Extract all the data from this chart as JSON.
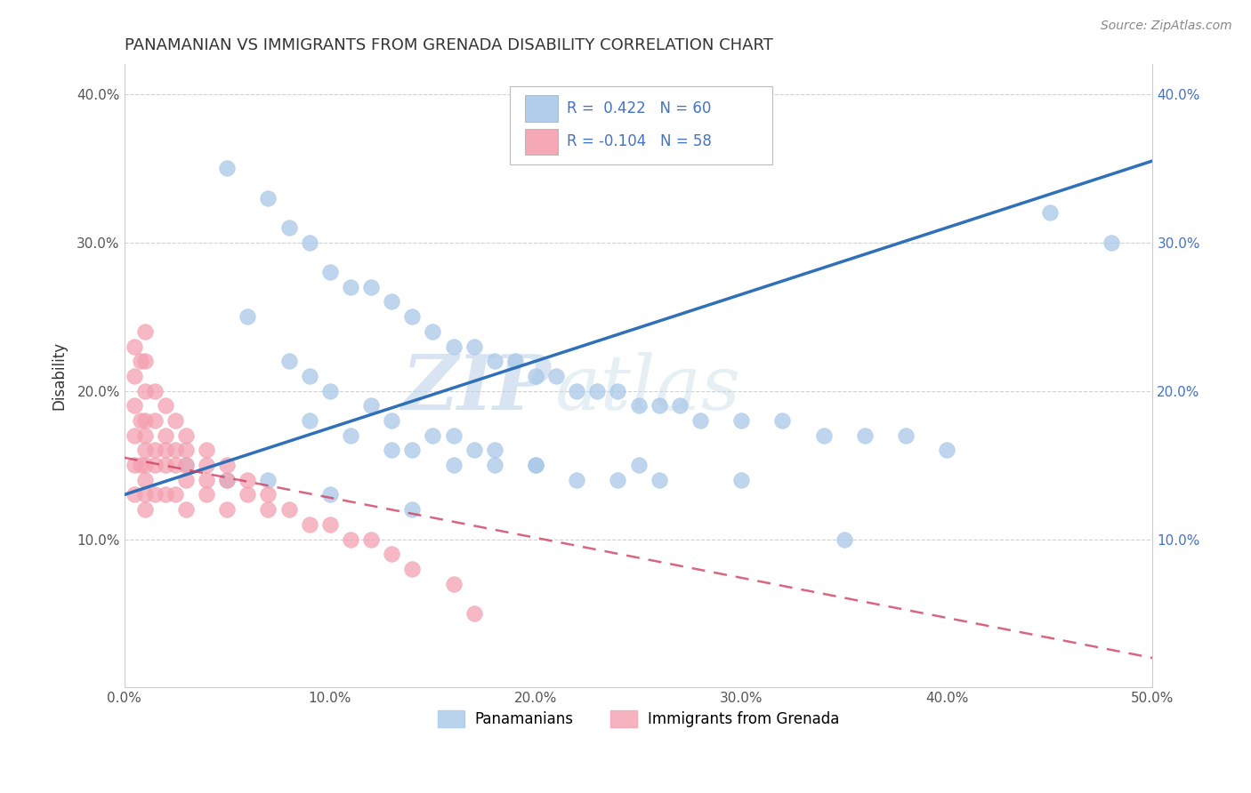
{
  "title": "PANAMANIAN VS IMMIGRANTS FROM GRENADA DISABILITY CORRELATION CHART",
  "source": "Source: ZipAtlas.com",
  "xlabel_label": "Panamanians",
  "ylabel_label": "Disability",
  "xlabel2_label": "Immigrants from Grenada",
  "xlim": [
    0.0,
    0.5
  ],
  "ylim": [
    0.0,
    0.42
  ],
  "xticks": [
    0.0,
    0.1,
    0.2,
    0.3,
    0.4,
    0.5
  ],
  "yticks": [
    0.1,
    0.2,
    0.3,
    0.4
  ],
  "xtick_labels": [
    "0.0%",
    "10.0%",
    "20.0%",
    "30.0%",
    "40.0%",
    "50.0%"
  ],
  "ytick_labels": [
    "10.0%",
    "20.0%",
    "30.0%",
    "40.0%"
  ],
  "R_blue": 0.422,
  "N_blue": 60,
  "R_pink": -0.104,
  "N_pink": 58,
  "blue_color": "#a8c8e8",
  "pink_color": "#f4a0b0",
  "blue_line_color": "#3070b8",
  "pink_line_color": "#d04060",
  "watermark_zip": "ZIP",
  "watermark_atlas": "atlas",
  "grid_color": "#cccccc",
  "bg_color": "#ffffff",
  "blue_scatter_x": [
    0.05,
    0.07,
    0.08,
    0.09,
    0.1,
    0.11,
    0.12,
    0.13,
    0.14,
    0.15,
    0.16,
    0.17,
    0.18,
    0.19,
    0.2,
    0.21,
    0.22,
    0.23,
    0.24,
    0.25,
    0.26,
    0.27,
    0.28,
    0.3,
    0.32,
    0.34,
    0.36,
    0.38,
    0.4,
    0.45,
    0.06,
    0.08,
    0.09,
    0.1,
    0.12,
    0.13,
    0.15,
    0.16,
    0.17,
    0.18,
    0.09,
    0.11,
    0.13,
    0.14,
    0.16,
    0.18,
    0.2,
    0.22,
    0.24,
    0.26,
    0.03,
    0.05,
    0.07,
    0.1,
    0.14,
    0.2,
    0.25,
    0.3,
    0.35,
    0.48
  ],
  "blue_scatter_y": [
    0.35,
    0.33,
    0.31,
    0.3,
    0.28,
    0.27,
    0.27,
    0.26,
    0.25,
    0.24,
    0.23,
    0.23,
    0.22,
    0.22,
    0.21,
    0.21,
    0.2,
    0.2,
    0.2,
    0.19,
    0.19,
    0.19,
    0.18,
    0.18,
    0.18,
    0.17,
    0.17,
    0.17,
    0.16,
    0.32,
    0.25,
    0.22,
    0.21,
    0.2,
    0.19,
    0.18,
    0.17,
    0.17,
    0.16,
    0.16,
    0.18,
    0.17,
    0.16,
    0.16,
    0.15,
    0.15,
    0.15,
    0.14,
    0.14,
    0.14,
    0.15,
    0.14,
    0.14,
    0.13,
    0.12,
    0.15,
    0.15,
    0.14,
    0.1,
    0.3
  ],
  "pink_scatter_x": [
    0.005,
    0.005,
    0.005,
    0.005,
    0.005,
    0.005,
    0.008,
    0.008,
    0.008,
    0.01,
    0.01,
    0.01,
    0.01,
    0.01,
    0.01,
    0.01,
    0.01,
    0.01,
    0.01,
    0.015,
    0.015,
    0.015,
    0.015,
    0.015,
    0.02,
    0.02,
    0.02,
    0.02,
    0.02,
    0.025,
    0.025,
    0.025,
    0.025,
    0.03,
    0.03,
    0.03,
    0.03,
    0.03,
    0.04,
    0.04,
    0.04,
    0.04,
    0.05,
    0.05,
    0.05,
    0.06,
    0.06,
    0.07,
    0.07,
    0.08,
    0.09,
    0.1,
    0.11,
    0.12,
    0.13,
    0.14,
    0.16,
    0.17
  ],
  "pink_scatter_y": [
    0.23,
    0.21,
    0.19,
    0.17,
    0.15,
    0.13,
    0.22,
    0.18,
    0.15,
    0.24,
    0.22,
    0.2,
    0.18,
    0.17,
    0.16,
    0.15,
    0.14,
    0.13,
    0.12,
    0.2,
    0.18,
    0.16,
    0.15,
    0.13,
    0.19,
    0.17,
    0.16,
    0.15,
    0.13,
    0.18,
    0.16,
    0.15,
    0.13,
    0.17,
    0.16,
    0.15,
    0.14,
    0.12,
    0.16,
    0.15,
    0.14,
    0.13,
    0.15,
    0.14,
    0.12,
    0.14,
    0.13,
    0.13,
    0.12,
    0.12,
    0.11,
    0.11,
    0.1,
    0.1,
    0.09,
    0.08,
    0.07,
    0.05
  ]
}
